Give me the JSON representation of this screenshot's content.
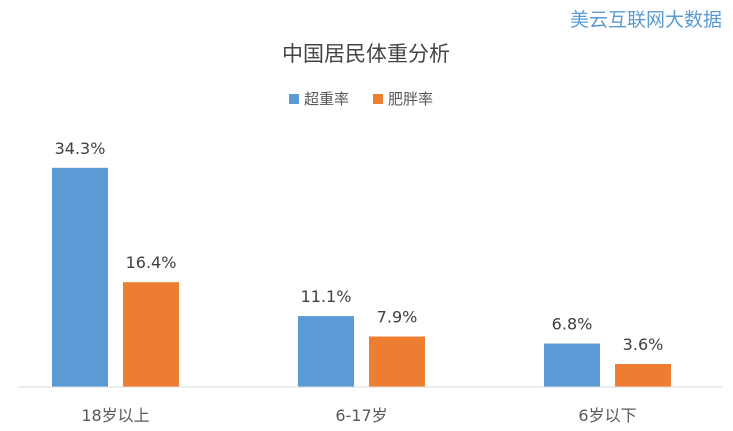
{
  "watermark": "美云互联网大数据",
  "chart_data": {
    "type": "bar",
    "title": "中国居民体重分析",
    "categories": [
      "18岁以上",
      "6-17岁",
      "6岁以下"
    ],
    "series": [
      {
        "name": "超重率",
        "values": [
          34.3,
          11.1,
          6.8
        ],
        "labels": [
          "34.3%",
          "11.1%",
          "6.8%"
        ],
        "color": "#5b9bd5"
      },
      {
        "name": "肥胖率",
        "values": [
          16.4,
          7.9,
          3.6
        ],
        "labels": [
          "16.4%",
          "7.9%",
          "3.6%"
        ],
        "color": "#ed7d31"
      }
    ],
    "ylim": [
      0,
      40
    ],
    "legend": "top",
    "grid": false,
    "xlabel": "",
    "ylabel": ""
  }
}
